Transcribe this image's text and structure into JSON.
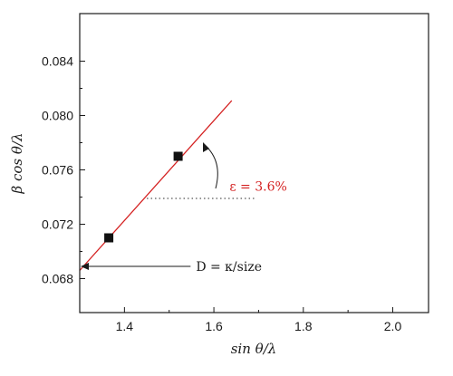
{
  "chart_data": {
    "type": "scatter",
    "xlabel": "sin θ/λ",
    "ylabel": "β cos θ/λ",
    "xlim": [
      1.3,
      2.08
    ],
    "ylim": [
      0.0655,
      0.0875
    ],
    "x_ticks": [
      1.4,
      1.6,
      1.8,
      2.0
    ],
    "x_tick_labels": [
      "1.4",
      "1.6",
      "1.8",
      "2.0"
    ],
    "y_ticks": [
      0.068,
      0.072,
      0.076,
      0.08,
      0.084
    ],
    "y_tick_labels": [
      "0.068",
      "0.072",
      "0.076",
      "0.080",
      "0.084"
    ],
    "grid": false,
    "series": [
      {
        "marker": "square",
        "color": "#111111",
        "x": [
          1.365,
          1.52
        ],
        "y": [
          0.071,
          0.077
        ]
      }
    ],
    "fit_line": {
      "color": "#d42020",
      "x": [
        1.3,
        1.64
      ],
      "y": [
        0.0686,
        0.0811
      ]
    },
    "reference_line": {
      "style": "dotted",
      "color": "#555555",
      "y": 0.0739,
      "x": [
        1.45,
        1.69
      ]
    },
    "annotations": {
      "strain": {
        "text": "ε = 3.6%",
        "color": "#d42020",
        "x": 1.635,
        "y": 0.0748
      },
      "size": {
        "text": "D = κ/size",
        "color": "#1a1a1a",
        "x": 1.56,
        "y": 0.0689,
        "arrow_to_x": 1.3,
        "arrow_to_y": 0.0689
      }
    }
  }
}
